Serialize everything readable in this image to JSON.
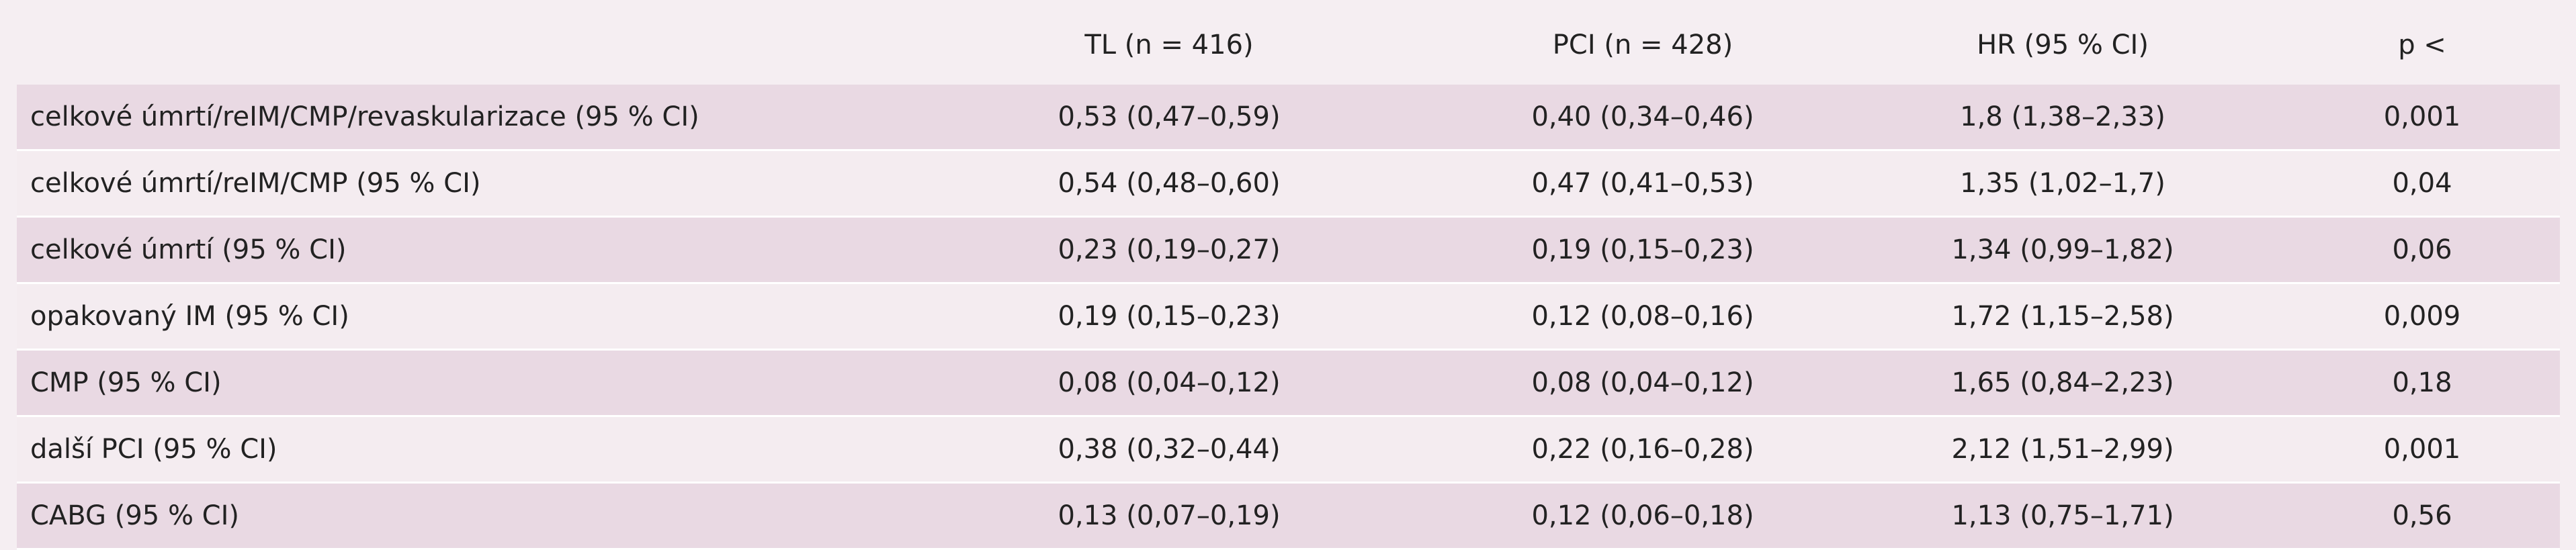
{
  "table": {
    "columns": [
      "",
      "TL (n = 416)",
      "PCI (n = 428)",
      "HR (95 % CI)",
      "p <"
    ],
    "rows": [
      [
        "celkové úmrtí/reIM/CMP/revaskularizace (95 % CI)",
        "0,53 (0,47–0,59)",
        "0,40 (0,34–0,46)",
        "1,8 (1,38–2,33)",
        "0,001"
      ],
      [
        "celkové úmrtí/reIM/CMP (95 % CI)",
        "0,54 (0,48–0,60)",
        "0,47 (0,41–0,53)",
        "1,35 (1,02–1,7)",
        "0,04"
      ],
      [
        "celkové úmrtí (95 % CI)",
        "0,23 (0,19–0,27)",
        "0,19 (0,15–0,23)",
        "1,34 (0,99–1,82)",
        "0,06"
      ],
      [
        "opakovaný IM (95 % CI)",
        "0,19 (0,15–0,23)",
        "0,12 (0,08–0,16)",
        "1,72 (1,15–2,58)",
        "0,009"
      ],
      [
        "CMP (95 % CI)",
        "0,08 (0,04–0,12)",
        "0,08 (0,04–0,12)",
        "1,65 (0,84–2,23)",
        "0,18"
      ],
      [
        "další PCI (95 % CI)",
        "0,38 (0,32–0,44)",
        "0,22 (0,16–0,28)",
        "2,12 (1,51–2,99)",
        "0,001"
      ],
      [
        "CABG (95 % CI)",
        "0,13 (0,07–0,19)",
        "0,12 (0,06–0,18)",
        "1,13 (0,75–1,71)",
        "0,56"
      ]
    ]
  }
}
